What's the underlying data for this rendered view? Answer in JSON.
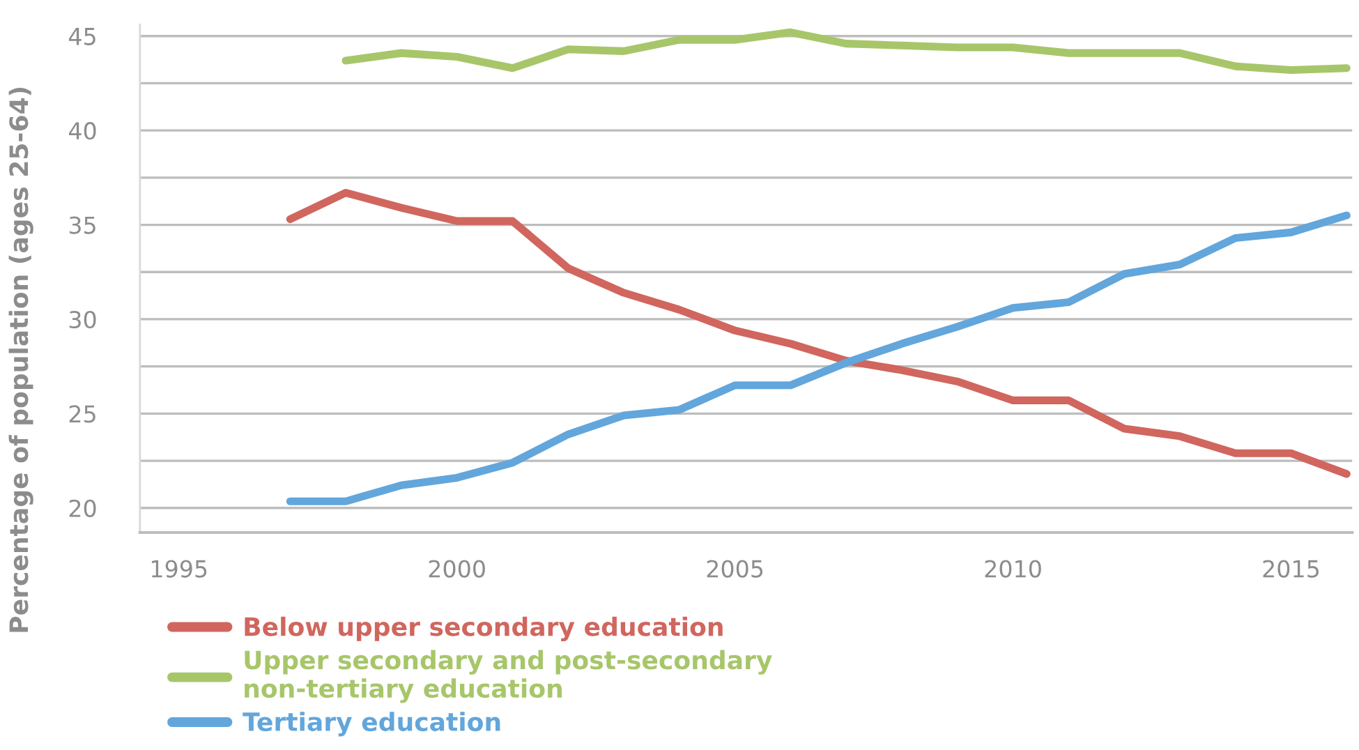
{
  "chart_data": {
    "type": "line",
    "ylabel": "Percentage of population (ages 25-64)",
    "x": [
      1997,
      1998,
      1999,
      2000,
      2001,
      2002,
      2003,
      2004,
      2005,
      2006,
      2007,
      2008,
      2009,
      2010,
      2011,
      2012,
      2013,
      2014,
      2015,
      2016
    ],
    "series": [
      {
        "name": "Below upper secondary education",
        "color": "#d0665e",
        "values": [
          35.3,
          36.7,
          35.9,
          35.2,
          35.2,
          32.7,
          31.4,
          30.5,
          29.4,
          28.7,
          27.8,
          27.3,
          26.7,
          25.7,
          25.7,
          24.2,
          23.8,
          22.9,
          22.9,
          21.8
        ]
      },
      {
        "name": "Upper secondary and post-secondary\nnon-tertiary education",
        "color": "#a7c66a",
        "values": [
          null,
          43.7,
          44.1,
          43.9,
          43.3,
          44.3,
          44.2,
          44.8,
          44.8,
          45.2,
          44.6,
          44.5,
          44.4,
          44.4,
          44.1,
          44.1,
          44.1,
          43.4,
          43.2,
          43.3
        ]
      },
      {
        "name": "Tertiary education",
        "color": "#62a6dc",
        "values": [
          20.35,
          20.35,
          21.2,
          21.6,
          22.4,
          23.9,
          24.9,
          25.2,
          26.5,
          26.5,
          27.7,
          28.7,
          29.6,
          30.6,
          30.9,
          32.4,
          32.9,
          34.3,
          34.6,
          35.5
        ]
      }
    ],
    "xlim": [
      1994.3,
      2016.1
    ],
    "xticks": [
      1995,
      2000,
      2005,
      2010,
      2015
    ],
    "ylim": [
      18.7,
      45.6
    ],
    "yticks": [
      20,
      25,
      30,
      35,
      40,
      45
    ],
    "grid": "y",
    "legend": "bottom left",
    "marker": "none",
    "line_style": "solid"
  }
}
